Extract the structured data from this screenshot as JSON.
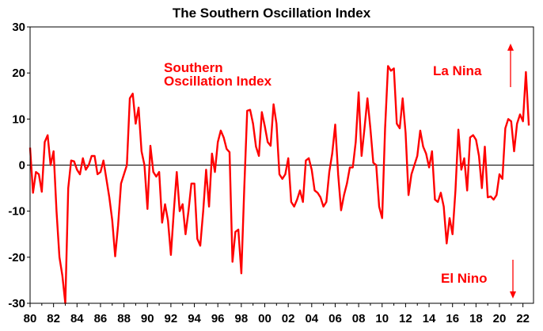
{
  "chart_data": {
    "type": "line",
    "title": "The Southern Oscillation Index",
    "xlabel": "",
    "ylabel": "",
    "xlim": [
      1980,
      2022.9
    ],
    "ylim": [
      -30,
      30
    ],
    "yticks": [
      -30,
      -20,
      -10,
      0,
      10,
      20,
      30
    ],
    "xticks": [
      1980,
      1982,
      1984,
      1986,
      1988,
      1990,
      1992,
      1994,
      1996,
      1998,
      2000,
      2002,
      2004,
      2006,
      2008,
      2010,
      2012,
      2014,
      2016,
      2018,
      2020,
      2022
    ],
    "xtick_labels": [
      "80",
      "82",
      "84",
      "86",
      "88",
      "90",
      "92",
      "94",
      "96",
      "98",
      "00",
      "02",
      "04",
      "06",
      "08",
      "10",
      "12",
      "14",
      "16",
      "18",
      "20",
      "22"
    ],
    "grid": false,
    "colors": {
      "series": "#ff0000",
      "axis": "#000000"
    },
    "annotations": {
      "series_label_line1": "Southern",
      "series_label_line2": "Oscillation Index",
      "la_nina": "La Nina",
      "el_nino": "El Nino"
    },
    "series": [
      {
        "x": [
          1980.0,
          1980.25,
          1980.5,
          1980.75,
          1981.0,
          1981.25,
          1981.5,
          1981.75,
          1982.0,
          1982.25,
          1982.5,
          1982.75,
          1983.0,
          1983.25,
          1983.5,
          1983.75,
          1984.0,
          1984.25,
          1984.5,
          1984.75,
          1985.0,
          1985.25,
          1985.5,
          1985.75,
          1986.0,
          1986.25,
          1986.5,
          1986.75,
          1987.0,
          1987.25,
          1987.5,
          1987.75,
          1988.0,
          1988.25,
          1988.5,
          1988.75,
          1989.0,
          1989.25,
          1989.5,
          1989.75,
          1990.0,
          1990.25,
          1990.5,
          1990.75,
          1991.0,
          1991.25,
          1991.5,
          1991.75,
          1992.0,
          1992.25,
          1992.5,
          1992.75,
          1993.0,
          1993.25,
          1993.5,
          1993.75,
          1994.0,
          1994.25,
          1994.5,
          1994.75,
          1995.0,
          1995.25,
          1995.5,
          1995.75,
          1996.0,
          1996.25,
          1996.5,
          1996.75,
          1997.0,
          1997.25,
          1997.5,
          1997.75,
          1998.0,
          1998.25,
          1998.5,
          1998.75,
          1999.0,
          1999.25,
          1999.5,
          1999.75,
          2000.0,
          2000.25,
          2000.5,
          2000.75,
          2001.0,
          2001.25,
          2001.5,
          2001.75,
          2002.0,
          2002.25,
          2002.5,
          2002.75,
          2003.0,
          2003.25,
          2003.5,
          2003.75,
          2004.0,
          2004.25,
          2004.5,
          2004.75,
          2005.0,
          2005.25,
          2005.5,
          2005.75,
          2006.0,
          2006.25,
          2006.5,
          2006.75,
          2007.0,
          2007.25,
          2007.5,
          2007.75,
          2008.0,
          2008.25,
          2008.5,
          2008.75,
          2009.0,
          2009.25,
          2009.5,
          2009.75,
          2010.0,
          2010.25,
          2010.5,
          2010.75,
          2011.0,
          2011.25,
          2011.5,
          2011.75,
          2012.0,
          2012.25,
          2012.5,
          2012.75,
          2013.0,
          2013.25,
          2013.5,
          2013.75,
          2014.0,
          2014.25,
          2014.5,
          2014.75,
          2015.0,
          2015.25,
          2015.5,
          2015.75,
          2016.0,
          2016.25,
          2016.5,
          2016.75,
          2017.0,
          2017.25,
          2017.5,
          2017.75,
          2018.0,
          2018.25,
          2018.5,
          2018.75,
          2019.0,
          2019.25,
          2019.5,
          2019.75,
          2020.0,
          2020.25,
          2020.5,
          2020.75,
          2021.0,
          2021.25,
          2021.5,
          2021.75,
          2022.0,
          2022.25,
          2022.5
        ],
        "values": [
          3.8,
          -6,
          -1.5,
          -2,
          -5.8,
          5,
          6.5,
          0,
          3,
          -10,
          -20,
          -24,
          -30,
          -5,
          1,
          0.8,
          -1,
          -2,
          1.5,
          -1,
          0,
          2,
          2,
          -2,
          -1.5,
          1,
          -3,
          -7,
          -12,
          -19.8,
          -13,
          -4,
          -2,
          0,
          14.5,
          15.5,
          9,
          12.5,
          3,
          0,
          -9.5,
          4.2,
          -1.5,
          -2.5,
          -1.5,
          -12.5,
          -8.5,
          -12,
          -19.5,
          -10,
          -1.5,
          -10,
          -8.5,
          -15,
          -10,
          -4,
          -4,
          -16,
          -17.5,
          -10,
          -1,
          -9,
          2.5,
          -1.5,
          5,
          7.5,
          6,
          3.5,
          2.8,
          -21,
          -14.5,
          -14,
          -23.5,
          -5,
          11.8,
          12,
          9,
          4,
          2,
          11.5,
          8.5,
          5,
          4.2,
          13.2,
          9,
          -2,
          -3,
          -2,
          1.5,
          -8,
          -9,
          -7.5,
          -5.5,
          -8,
          1,
          1.5,
          -1,
          -5.5,
          -6,
          -7,
          -9,
          -8,
          -1.5,
          2.5,
          8.8,
          -2,
          -9.8,
          -6.5,
          -4,
          -0.5,
          -0.5,
          5,
          15.8,
          2,
          8,
          14.5,
          8,
          0.5,
          0,
          -9,
          -11.5,
          8,
          21.5,
          20.5,
          21,
          9,
          8,
          14.5,
          7,
          -6.5,
          -2,
          0,
          2,
          7.5,
          4,
          2.5,
          -0.5,
          3,
          -7.5,
          -8,
          -6,
          -9,
          -17,
          -11.5,
          -15,
          -5.5,
          7.7,
          -1,
          1.5,
          -5.5,
          6,
          6.5,
          5.5,
          2,
          -5,
          4,
          -7,
          -6.8,
          -7.5,
          -6.5,
          -2,
          -3,
          8,
          10,
          9.5,
          3,
          9,
          11,
          9.5,
          20.2,
          8.6
        ]
      }
    ]
  }
}
